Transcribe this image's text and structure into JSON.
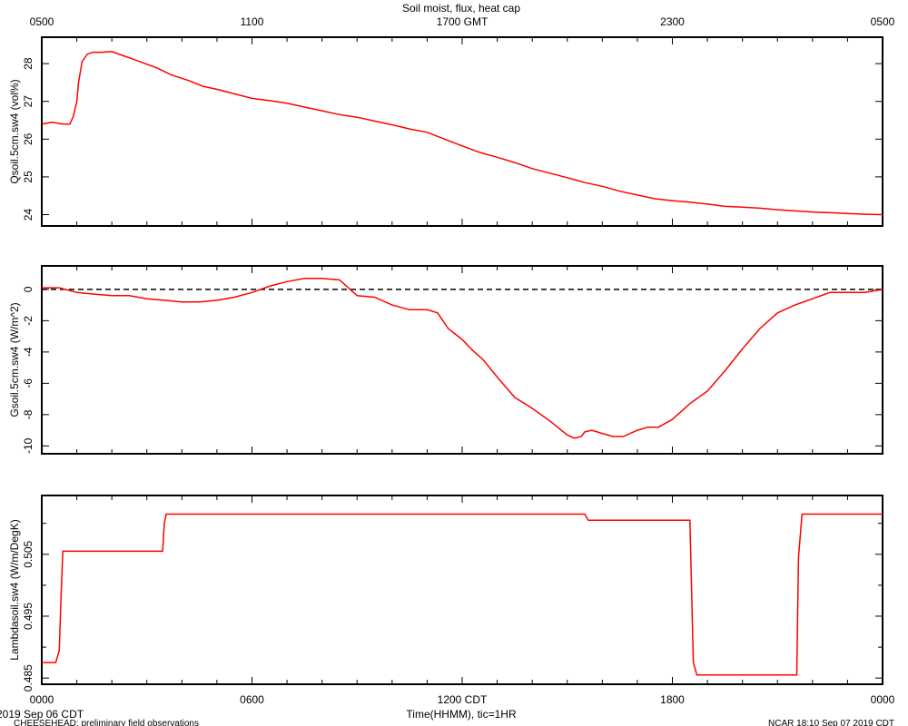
{
  "title": "Soil moist, flux, heat cap",
  "colors": {
    "series": "#ff0000",
    "axes": "#000000",
    "background": "#ffffff"
  },
  "top_axis": {
    "label_suffix_tick": "1700 GMT"
  },
  "footer": {
    "date_label": "2019 Sep 06 CDT",
    "xlabel": "Time(HHMM), tic=1HR",
    "left_note": "CHEESEHEAD: preliminary field observations",
    "right_note": "NCAR 18:10 Sep 07 2019 CDT"
  },
  "chart_data": [
    {
      "type": "line",
      "panel": "top",
      "ylabel": "Qsoil.5cm.sw4 (vol%)",
      "ylim": [
        23.7,
        28.7
      ],
      "yticks": [
        24,
        25,
        26,
        27,
        28
      ],
      "top_xticks": [
        "0500",
        "1100",
        "1700 GMT",
        "2300",
        "0500"
      ],
      "series": [
        {
          "x": [
            0,
            0.3,
            0.6,
            0.8,
            0.9,
            1.0,
            1.05,
            1.15,
            1.3,
            1.45,
            1.7,
            2.0,
            2.3,
            2.6,
            2.9,
            3.3,
            3.7,
            4.2,
            4.6,
            5.0,
            5.5,
            6.0,
            6.5,
            7.0,
            7.5,
            8.0,
            8.5,
            9.0,
            9.5,
            10.0,
            10.5,
            11.0,
            11.5,
            12.0,
            12.5,
            13.0,
            13.5,
            14.0,
            14.5,
            15.0,
            15.5,
            16.0,
            16.5,
            17.0,
            17.5,
            18.0,
            18.5,
            19.0,
            19.5,
            20.0,
            20.5,
            21.0,
            21.5,
            22.0,
            22.5,
            23.0,
            23.5,
            24.0
          ],
          "y": [
            26.4,
            26.45,
            26.4,
            26.4,
            26.6,
            27.0,
            27.5,
            28.05,
            28.25,
            28.3,
            28.3,
            28.32,
            28.22,
            28.12,
            28.02,
            27.88,
            27.7,
            27.55,
            27.4,
            27.32,
            27.2,
            27.08,
            27.02,
            26.95,
            26.85,
            26.75,
            26.65,
            26.58,
            26.48,
            26.38,
            26.27,
            26.18,
            26.0,
            25.82,
            25.65,
            25.52,
            25.38,
            25.22,
            25.1,
            24.98,
            24.85,
            24.75,
            24.62,
            24.52,
            24.42,
            24.37,
            24.33,
            24.28,
            24.22,
            24.2,
            24.17,
            24.13,
            24.1,
            24.07,
            24.05,
            24.03,
            24.01,
            24.0
          ]
        }
      ]
    },
    {
      "type": "line",
      "panel": "middle",
      "ylabel": "Gsoil.5cm.sw4 (W/m^2)",
      "ylim": [
        -10.5,
        1.5
      ],
      "yticks": [
        0,
        -2,
        -4,
        -6,
        -8,
        -10
      ],
      "zero_line": true,
      "series": [
        {
          "x": [
            0,
            0.5,
            1.0,
            1.5,
            2.0,
            2.5,
            3.0,
            3.5,
            4.0,
            4.5,
            5.0,
            5.5,
            6.0,
            6.5,
            7.0,
            7.5,
            8.0,
            8.5,
            9.0,
            9.5,
            10.0,
            10.5,
            11.0,
            11.3,
            11.6,
            12.0,
            12.3,
            12.6,
            13.0,
            13.5,
            14.0,
            14.5,
            15.0,
            15.2,
            15.4,
            15.5,
            15.7,
            16.0,
            16.3,
            16.6,
            17.0,
            17.3,
            17.6,
            18.0,
            18.5,
            19.0,
            19.5,
            20.0,
            20.5,
            21.0,
            21.5,
            22.0,
            22.5,
            23.0,
            23.5,
            24.0
          ],
          "y": [
            0.1,
            0.1,
            -0.2,
            -0.3,
            -0.4,
            -0.4,
            -0.6,
            -0.7,
            -0.8,
            -0.8,
            -0.7,
            -0.5,
            -0.2,
            0.2,
            0.5,
            0.7,
            0.7,
            0.6,
            -0.4,
            -0.5,
            -1.0,
            -1.3,
            -1.3,
            -1.5,
            -2.5,
            -3.2,
            -3.9,
            -4.5,
            -5.6,
            -6.9,
            -7.6,
            -8.4,
            -9.3,
            -9.5,
            -9.4,
            -9.1,
            -9.0,
            -9.2,
            -9.4,
            -9.4,
            -9.0,
            -8.8,
            -8.8,
            -8.3,
            -7.3,
            -6.5,
            -5.2,
            -3.8,
            -2.5,
            -1.5,
            -1.0,
            -0.6,
            -0.2,
            -0.2,
            -0.2,
            0.0
          ]
        }
      ]
    },
    {
      "type": "line",
      "panel": "bottom",
      "ylabel": "Lambdasoil.sw4 (W/m/DegK)",
      "ylim": [
        0.484,
        0.5145
      ],
      "yticks": [
        0.485,
        0.495,
        0.505
      ],
      "ytick_labels": [
        "0.485",
        "0.495",
        "0.505"
      ],
      "xticks": [
        0,
        6,
        12,
        18,
        24
      ],
      "xtick_labels": [
        "0000",
        "0600",
        "1200 CDT",
        "1800",
        "0000"
      ],
      "series": [
        {
          "x": [
            0,
            0.4,
            0.5,
            0.55,
            0.6,
            3.45,
            3.5,
            3.55,
            15.5,
            15.6,
            18.5,
            18.6,
            18.7,
            21.55,
            21.6,
            21.7,
            24.0
          ],
          "y": [
            0.4875,
            0.4875,
            0.4895,
            0.498,
            0.5055,
            0.5055,
            0.51,
            0.5115,
            0.5115,
            0.5105,
            0.5105,
            0.4875,
            0.4855,
            0.4855,
            0.5045,
            0.5115,
            0.5115
          ]
        }
      ]
    }
  ]
}
